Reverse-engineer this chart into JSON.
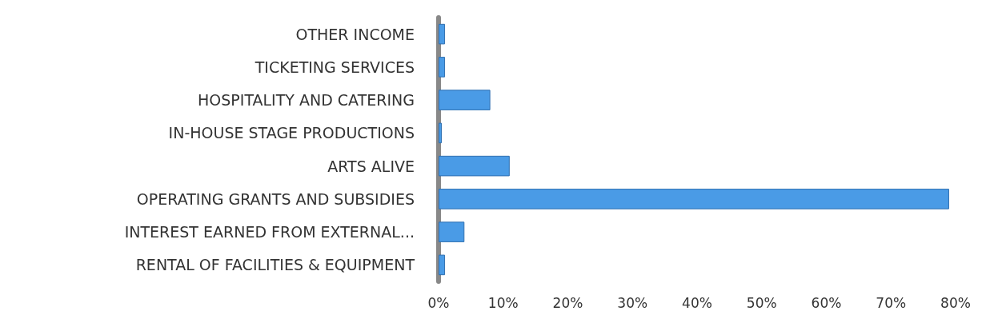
{
  "chart_data": {
    "type": "bar",
    "orientation": "horizontal",
    "categories": [
      "OTHER INCOME",
      "TICKETING SERVICES",
      "HOSPITALITY AND CATERING",
      "IN-HOUSE STAGE PRODUCTIONS",
      "ARTS ALIVE",
      "OPERATING GRANTS AND SUBSIDIES",
      "INTEREST EARNED FROM EXTERNAL...",
      "RENTAL OF FACILITIES & EQUIPMENT"
    ],
    "values": [
      1,
      1,
      8,
      0.5,
      11,
      79,
      4,
      1
    ],
    "color": "#4a9be6",
    "xlim": [
      0,
      80
    ],
    "xticks": [
      {
        "value": 0,
        "label": "0%"
      },
      {
        "value": 10,
        "label": "10%"
      },
      {
        "value": 20,
        "label": "20%"
      },
      {
        "value": 30,
        "label": "30%"
      },
      {
        "value": 40,
        "label": "40%"
      },
      {
        "value": 50,
        "label": "50%"
      },
      {
        "value": 60,
        "label": "60%"
      },
      {
        "value": 70,
        "label": "70%"
      },
      {
        "value": 80,
        "label": "80%"
      }
    ],
    "grid": false
  }
}
